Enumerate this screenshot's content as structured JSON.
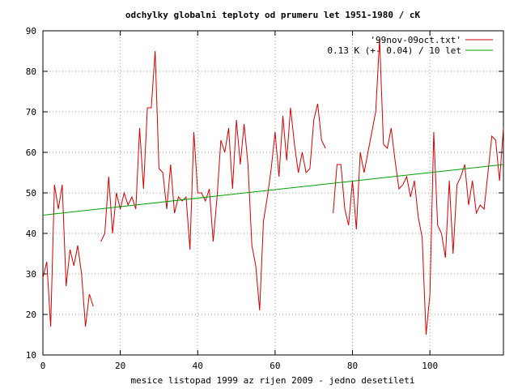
{
  "chart_data": {
    "type": "line",
    "title": "odchylky globalni teploty od prumeru let 1951-1980 / cK",
    "xlabel": "mesice listopad 1999 az rijen 2009 - jedno desetileti",
    "ylabel": "",
    "xlim": [
      0,
      119
    ],
    "ylim": [
      10,
      90
    ],
    "xticks": [
      0,
      20,
      40,
      60,
      80,
      100
    ],
    "yticks": [
      10,
      20,
      30,
      40,
      50,
      60,
      70,
      80,
      90
    ],
    "grid": true,
    "legend_position": "top-right",
    "colors": {
      "data": "#d40000",
      "trend": "#00a000"
    },
    "series": [
      {
        "name": "'99nov-09oct.txt'",
        "x": [
          0,
          1,
          2,
          3,
          4,
          5,
          6,
          7,
          8,
          9,
          10,
          11,
          12,
          13,
          14,
          15,
          16,
          17,
          18,
          19,
          20,
          21,
          22,
          23,
          24,
          25,
          26,
          27,
          28,
          29,
          30,
          31,
          32,
          33,
          34,
          35,
          36,
          37,
          38,
          39,
          40,
          41,
          42,
          43,
          44,
          45,
          46,
          47,
          48,
          49,
          50,
          51,
          52,
          53,
          54,
          55,
          56,
          57,
          58,
          59,
          60,
          61,
          62,
          63,
          64,
          65,
          66,
          67,
          68,
          69,
          70,
          71,
          72,
          73,
          74,
          75,
          76,
          77,
          78,
          79,
          80,
          81,
          82,
          83,
          84,
          85,
          86,
          87,
          88,
          89,
          90,
          91,
          92,
          93,
          94,
          95,
          96,
          97,
          98,
          99,
          100,
          101,
          102,
          103,
          104,
          105,
          106,
          107,
          108,
          109,
          110,
          111,
          112,
          113,
          114,
          115,
          116,
          117,
          118,
          119
        ],
        "y": [
          29,
          33,
          17,
          52,
          46,
          52,
          27,
          36,
          32,
          37,
          30,
          17,
          25,
          22,
          null,
          38,
          40,
          54,
          40,
          50,
          46,
          50,
          47,
          49,
          46,
          66,
          51,
          71,
          71,
          85,
          56,
          55,
          46,
          57,
          45,
          49,
          48,
          49,
          36,
          65,
          50,
          50,
          48,
          51,
          38,
          49,
          63,
          60,
          66,
          51,
          68,
          57,
          67,
          57,
          37,
          32,
          21,
          43,
          49,
          56,
          65,
          54,
          69,
          58,
          71,
          62,
          55,
          60,
          55,
          56,
          68,
          72,
          63,
          61,
          null,
          45,
          57,
          57,
          46,
          42,
          53,
          41,
          60,
          55,
          60,
          65,
          70,
          88,
          62,
          61,
          66,
          58,
          51,
          52,
          54,
          49,
          53,
          44,
          39,
          15,
          25,
          65,
          42,
          40,
          34,
          53,
          35,
          52,
          54,
          57,
          47,
          53,
          45,
          47,
          46,
          55,
          64,
          63,
          53,
          66
        ]
      },
      {
        "name": "0.13 K (+- 0.04) / 10 let",
        "x": [
          0,
          119
        ],
        "y": [
          44.5,
          57.0
        ]
      }
    ]
  }
}
